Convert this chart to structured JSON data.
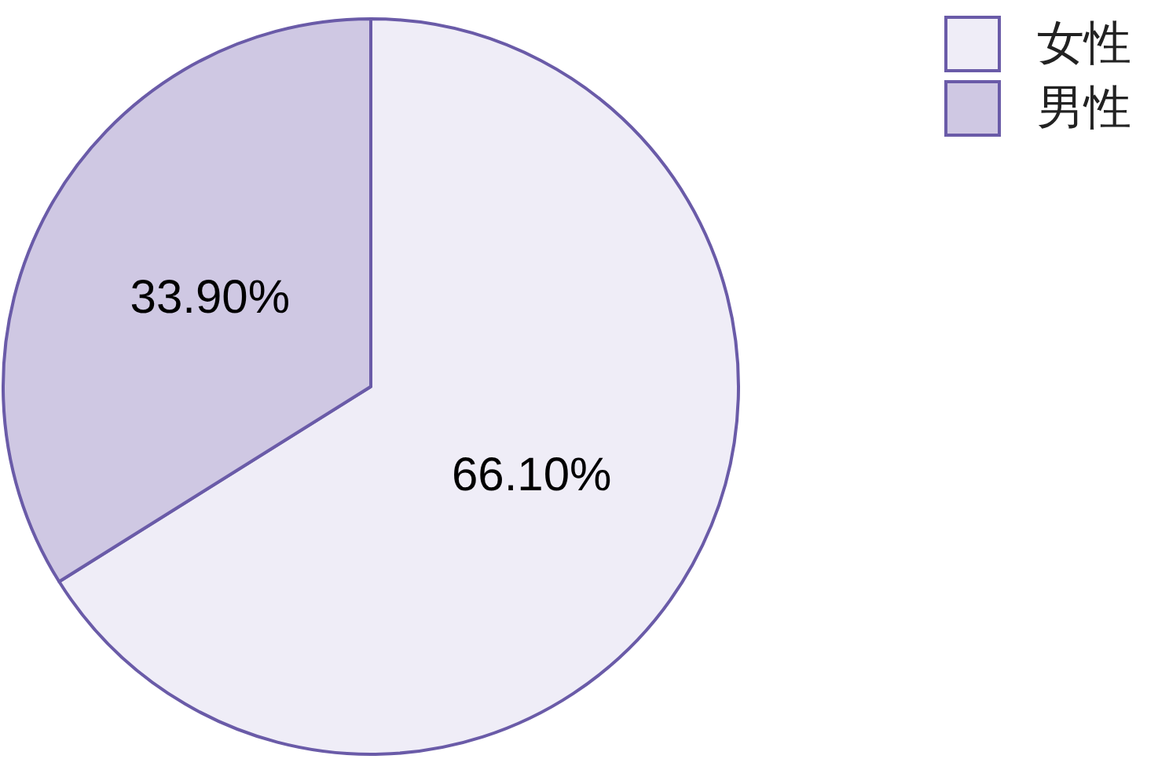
{
  "chart_data": {
    "type": "pie",
    "categories": [
      "女性",
      "男性"
    ],
    "values": [
      66.1,
      33.9
    ],
    "value_labels": [
      "66.10%",
      "33.90%"
    ],
    "colors": [
      "#efedf7",
      "#cfc8e3"
    ],
    "legend": "top right"
  }
}
